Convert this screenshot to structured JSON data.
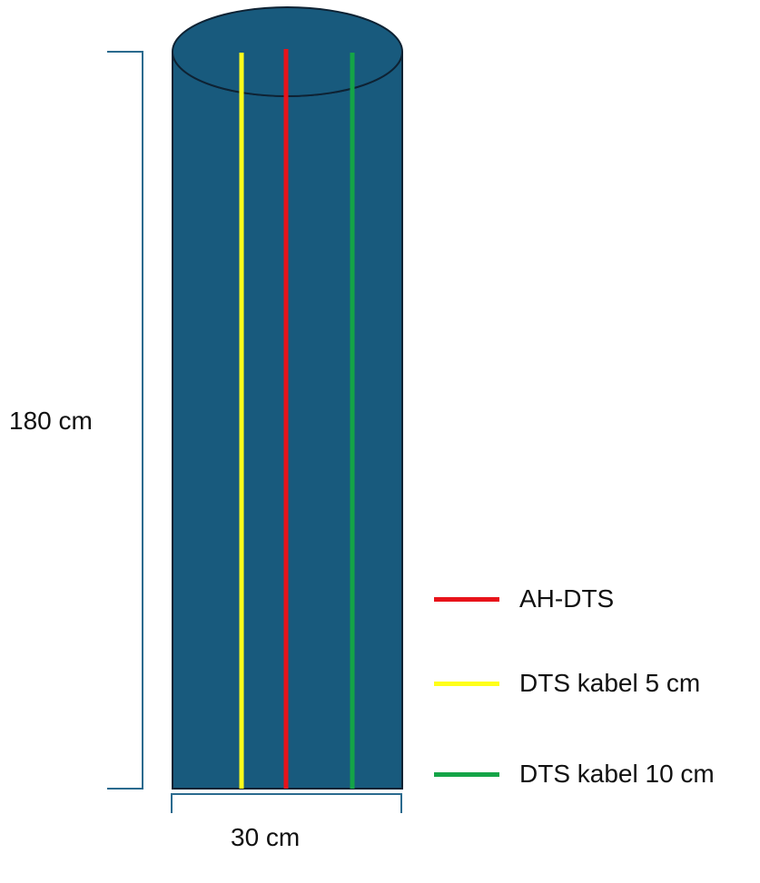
{
  "dimensions": {
    "height_label": "180 cm",
    "width_label": "30 cm"
  },
  "legend": {
    "items": [
      {
        "label": "AH-DTS",
        "color": "#e8131a"
      },
      {
        "label": "DTS kabel 5 cm",
        "color": "#ffff1a"
      },
      {
        "label": "DTS kabel 10 cm",
        "color": "#14a447"
      }
    ]
  },
  "colors": {
    "cylinder_fill": "#185a7d",
    "cylinder_outline": "#0e2233",
    "bracket": "#2a6a8e"
  }
}
